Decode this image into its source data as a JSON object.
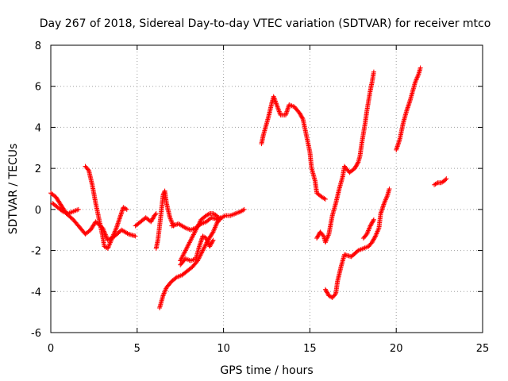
{
  "chart_data": {
    "type": "scatter",
    "title": "Day 267 of 2018, Sidereal Day-to-day VTEC variation (SDTVAR) for receiver mtco",
    "xlabel": "GPS time / hours",
    "ylabel": "SDTVAR / TECUs",
    "xlim": [
      0,
      25
    ],
    "ylim": [
      -6,
      8
    ],
    "xticks": [
      "0",
      "5",
      "10",
      "15",
      "20",
      "25"
    ],
    "yticks": [
      "-6",
      "-4",
      "-2",
      "0",
      "2",
      "4",
      "6",
      "8"
    ],
    "grid": true,
    "marker": "+",
    "color": "#ff0000",
    "series": [
      {
        "points": [
          [
            0.0,
            0.8
          ],
          [
            0.3,
            0.6
          ],
          [
            0.6,
            0.2
          ],
          [
            0.9,
            -0.2
          ],
          [
            1.3,
            -0.5
          ],
          [
            1.7,
            -0.9
          ],
          [
            2.0,
            -1.2
          ],
          [
            2.3,
            -1.0
          ],
          [
            2.6,
            -0.6
          ],
          [
            3.0,
            -0.9
          ],
          [
            3.3,
            -1.5
          ],
          [
            3.7,
            -1.3
          ],
          [
            4.1,
            -1.0
          ],
          [
            4.5,
            -1.2
          ],
          [
            4.9,
            -1.3
          ]
        ]
      },
      {
        "points": [
          [
            0.1,
            0.3
          ],
          [
            0.4,
            0.1
          ],
          [
            0.7,
            -0.1
          ],
          [
            1.0,
            -0.2
          ],
          [
            1.3,
            -0.1
          ],
          [
            1.6,
            0.0
          ]
        ]
      },
      {
        "points": [
          [
            2.0,
            2.1
          ],
          [
            2.2,
            1.9
          ],
          [
            2.4,
            1.2
          ],
          [
            2.6,
            0.3
          ],
          [
            2.8,
            -0.5
          ],
          [
            3.0,
            -1.3
          ],
          [
            3.1,
            -1.8
          ],
          [
            3.3,
            -1.9
          ],
          [
            3.5,
            -1.5
          ],
          [
            3.8,
            -0.9
          ],
          [
            4.0,
            -0.4
          ],
          [
            4.2,
            0.1
          ],
          [
            4.4,
            0.0
          ]
        ]
      },
      {
        "points": [
          [
            4.9,
            -0.8
          ],
          [
            5.2,
            -0.6
          ],
          [
            5.5,
            -0.4
          ],
          [
            5.8,
            -0.6
          ],
          [
            6.0,
            -0.3
          ],
          [
            6.1,
            -0.2
          ]
        ]
      },
      {
        "points": [
          [
            6.1,
            -1.9
          ],
          [
            6.2,
            -1.5
          ],
          [
            6.3,
            -0.8
          ],
          [
            6.4,
            -0.1
          ],
          [
            6.5,
            0.7
          ],
          [
            6.6,
            0.9
          ],
          [
            6.7,
            0.3
          ],
          [
            6.9,
            -0.4
          ],
          [
            7.1,
            -0.8
          ]
        ]
      },
      {
        "points": [
          [
            6.3,
            -4.8
          ],
          [
            6.5,
            -4.2
          ],
          [
            6.7,
            -3.8
          ],
          [
            7.0,
            -3.5
          ],
          [
            7.3,
            -3.3
          ],
          [
            7.6,
            -3.2
          ],
          [
            7.9,
            -3.0
          ],
          [
            8.2,
            -2.8
          ],
          [
            8.5,
            -2.5
          ],
          [
            8.8,
            -2.0
          ],
          [
            9.1,
            -1.5
          ],
          [
            9.4,
            -1.1
          ],
          [
            9.6,
            -0.7
          ],
          [
            9.8,
            -0.4
          ]
        ]
      },
      {
        "points": [
          [
            7.0,
            -0.8
          ],
          [
            7.4,
            -0.7
          ],
          [
            7.8,
            -0.9
          ],
          [
            8.1,
            -1.0
          ],
          [
            8.4,
            -0.9
          ],
          [
            8.7,
            -0.7
          ],
          [
            9.0,
            -0.6
          ],
          [
            9.3,
            -0.4
          ],
          [
            9.7,
            -0.5
          ],
          [
            10.1,
            -0.3
          ],
          [
            10.4,
            -0.3
          ],
          [
            10.7,
            -0.2
          ],
          [
            11.0,
            -0.1
          ],
          [
            11.2,
            0.0
          ]
        ]
      },
      {
        "points": [
          [
            7.5,
            -2.5
          ],
          [
            7.8,
            -2.0
          ],
          [
            8.1,
            -1.5
          ],
          [
            8.4,
            -1.0
          ],
          [
            8.7,
            -0.5
          ],
          [
            9.0,
            -0.3
          ],
          [
            9.2,
            -0.2
          ],
          [
            9.4,
            -0.2
          ],
          [
            9.6,
            -0.3
          ],
          [
            9.8,
            -0.5
          ]
        ]
      },
      {
        "points": [
          [
            7.5,
            -2.7
          ],
          [
            7.8,
            -2.4
          ],
          [
            8.1,
            -2.5
          ],
          [
            8.4,
            -2.4
          ],
          [
            8.6,
            -1.8
          ],
          [
            8.8,
            -1.3
          ],
          [
            9.0,
            -1.4
          ],
          [
            9.2,
            -1.8
          ],
          [
            9.4,
            -1.5
          ]
        ]
      },
      {
        "points": [
          [
            12.2,
            3.2
          ],
          [
            12.3,
            3.6
          ],
          [
            12.6,
            4.5
          ],
          [
            12.8,
            5.2
          ],
          [
            12.9,
            5.5
          ],
          [
            13.3,
            4.6
          ],
          [
            13.6,
            4.6
          ],
          [
            13.8,
            5.1
          ],
          [
            14.1,
            5.0
          ],
          [
            14.4,
            4.7
          ],
          [
            14.6,
            4.4
          ],
          [
            14.8,
            3.6
          ],
          [
            15.0,
            2.8
          ],
          [
            15.1,
            2.0
          ],
          [
            15.3,
            1.4
          ],
          [
            15.4,
            0.8
          ],
          [
            15.7,
            0.6
          ],
          [
            15.9,
            0.5
          ]
        ]
      },
      {
        "points": [
          [
            15.4,
            -1.4
          ],
          [
            15.6,
            -1.1
          ],
          [
            15.8,
            -1.3
          ],
          [
            15.9,
            -1.6
          ],
          [
            16.1,
            -1.2
          ],
          [
            16.3,
            -0.3
          ],
          [
            16.5,
            0.3
          ],
          [
            16.7,
            1.0
          ],
          [
            16.9,
            1.6
          ],
          [
            17.0,
            2.1
          ],
          [
            17.3,
            1.8
          ],
          [
            17.6,
            2.0
          ],
          [
            17.8,
            2.3
          ],
          [
            17.9,
            2.6
          ],
          [
            18.0,
            3.2
          ],
          [
            18.2,
            4.2
          ],
          [
            18.3,
            4.8
          ],
          [
            18.5,
            5.8
          ],
          [
            18.6,
            6.2
          ],
          [
            18.7,
            6.7
          ]
        ]
      },
      {
        "points": [
          [
            15.9,
            -3.9
          ],
          [
            16.1,
            -4.2
          ],
          [
            16.3,
            -4.3
          ],
          [
            16.5,
            -4.1
          ],
          [
            16.6,
            -3.5
          ],
          [
            16.8,
            -2.8
          ],
          [
            17.0,
            -2.2
          ],
          [
            17.4,
            -2.3
          ],
          [
            17.8,
            -2.0
          ],
          [
            18.1,
            -1.9
          ],
          [
            18.4,
            -1.8
          ],
          [
            18.6,
            -1.6
          ],
          [
            18.8,
            -1.3
          ],
          [
            19.0,
            -0.9
          ],
          [
            19.1,
            -0.2
          ],
          [
            19.3,
            0.3
          ],
          [
            19.5,
            0.7
          ],
          [
            19.6,
            1.0
          ]
        ]
      },
      {
        "points": [
          [
            18.1,
            -1.4
          ],
          [
            18.3,
            -1.2
          ],
          [
            18.5,
            -0.8
          ],
          [
            18.7,
            -0.5
          ]
        ]
      },
      {
        "points": [
          [
            20.0,
            2.9
          ],
          [
            20.2,
            3.4
          ],
          [
            20.4,
            4.2
          ],
          [
            20.6,
            4.8
          ],
          [
            20.8,
            5.3
          ],
          [
            21.0,
            5.9
          ],
          [
            21.1,
            6.2
          ],
          [
            21.3,
            6.6
          ],
          [
            21.4,
            6.9
          ]
        ]
      },
      {
        "points": [
          [
            22.2,
            1.2
          ],
          [
            22.4,
            1.3
          ],
          [
            22.6,
            1.3
          ],
          [
            22.8,
            1.4
          ],
          [
            22.9,
            1.5
          ]
        ]
      }
    ]
  }
}
